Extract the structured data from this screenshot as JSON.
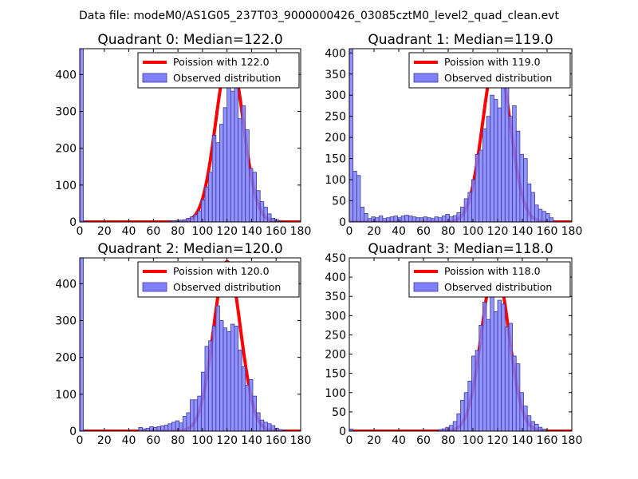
{
  "figure": {
    "suptitle": "Data file: modeM0/AS1G05_237T03_9000000426_03085cztM0_level2_quad_clean.evt"
  },
  "colors": {
    "hist_fill": "#8080ff",
    "hist_edge": "#3a3a9a",
    "poisson_line": "#ff0000"
  },
  "chart_data": [
    {
      "type": "bar",
      "title": "Quadrant 0: Median=122.0",
      "legend": {
        "placement": "top-right",
        "entries": [
          "Poission with 122.0",
          "Observed distribution"
        ]
      },
      "xlim": [
        0,
        180
      ],
      "ylim": [
        0,
        470
      ],
      "xticks": [
        "0",
        "20",
        "40",
        "60",
        "80",
        "100",
        "120",
        "140",
        "160",
        "180"
      ],
      "yticks": [
        0,
        100,
        200,
        300,
        400
      ],
      "bin_width": 3,
      "bins": {
        "x": [
          0,
          3,
          72,
          75,
          78,
          81,
          84,
          87,
          90,
          93,
          96,
          99,
          102,
          105,
          108,
          111,
          114,
          117,
          120,
          123,
          126,
          129,
          132,
          135,
          138,
          141,
          144,
          147,
          150,
          153,
          156,
          159,
          162,
          165
        ],
        "y": [
          470,
          2,
          2,
          3,
          4,
          5,
          6,
          10,
          14,
          20,
          30,
          60,
          95,
          135,
          235,
          215,
          265,
          310,
          380,
          355,
          390,
          280,
          315,
          250,
          145,
          135,
          85,
          55,
          40,
          22,
          10,
          6,
          2,
          1
        ]
      },
      "poisson": {
        "mean": 122.0,
        "peak": 455
      }
    },
    {
      "type": "bar",
      "title": "Quadrant 1: Median=119.0",
      "legend": {
        "placement": "top-right",
        "entries": [
          "Poission with 119.0",
          "Observed distribution"
        ]
      },
      "xlim": [
        0,
        180
      ],
      "ylim": [
        0,
        410
      ],
      "xticks": [
        "0",
        "20",
        "40",
        "60",
        "80",
        "100",
        "120",
        "140",
        "160",
        "180"
      ],
      "yticks": [
        0,
        50,
        100,
        150,
        200,
        250,
        300,
        350,
        400
      ],
      "bin_width": 3,
      "bins": {
        "x": [
          0,
          3,
          6,
          9,
          12,
          15,
          18,
          21,
          24,
          27,
          30,
          33,
          36,
          39,
          42,
          45,
          48,
          51,
          54,
          57,
          60,
          63,
          66,
          69,
          72,
          75,
          78,
          81,
          84,
          87,
          90,
          93,
          96,
          99,
          102,
          105,
          108,
          111,
          114,
          117,
          120,
          123,
          126,
          129,
          132,
          135,
          138,
          141,
          144,
          147,
          150,
          153,
          156,
          159,
          162
        ],
        "y": [
          410,
          120,
          110,
          35,
          20,
          8,
          12,
          10,
          14,
          8,
          10,
          12,
          14,
          10,
          14,
          16,
          14,
          12,
          10,
          10,
          12,
          10,
          8,
          12,
          10,
          14,
          18,
          12,
          15,
          22,
          35,
          55,
          70,
          100,
          160,
          170,
          220,
          250,
          300,
          290,
          270,
          330,
          340,
          250,
          275,
          215,
          160,
          150,
          90,
          70,
          40,
          30,
          25,
          20,
          10
        ]
      },
      "poisson": {
        "mean": 119.0,
        "peak": 395
      }
    },
    {
      "type": "bar",
      "title": "Quadrant 2: Median=120.0",
      "legend": {
        "placement": "top-right",
        "entries": [
          "Poission with 120.0",
          "Observed distribution"
        ]
      },
      "xlim": [
        0,
        180
      ],
      "ylim": [
        0,
        470
      ],
      "xticks": [
        "0",
        "20",
        "40",
        "60",
        "80",
        "100",
        "120",
        "140",
        "160",
        "180"
      ],
      "yticks": [
        0,
        100,
        200,
        300,
        400
      ],
      "bin_width": 3,
      "bins": {
        "x": [
          0,
          3,
          48,
          51,
          54,
          57,
          60,
          63,
          66,
          69,
          72,
          75,
          78,
          81,
          84,
          87,
          90,
          93,
          96,
          99,
          102,
          105,
          108,
          111,
          114,
          117,
          120,
          123,
          126,
          129,
          132,
          135,
          138,
          141,
          144,
          147,
          150,
          153,
          156,
          159,
          162,
          165
        ],
        "y": [
          470,
          2,
          10,
          6,
          8,
          12,
          10,
          12,
          14,
          16,
          20,
          24,
          28,
          22,
          40,
          50,
          85,
          85,
          95,
          160,
          230,
          245,
          285,
          340,
          300,
          280,
          270,
          290,
          285,
          220,
          175,
          125,
          140,
          95,
          50,
          30,
          24,
          20,
          15,
          8,
          4,
          2
        ]
      },
      "poisson": {
        "mean": 120.0,
        "peak": 460
      }
    },
    {
      "type": "bar",
      "title": "Quadrant 3: Median=118.0",
      "legend": {
        "placement": "top-right",
        "entries": [
          "Poission with 118.0",
          "Observed distribution"
        ]
      },
      "xlim": [
        0,
        180
      ],
      "ylim": [
        0,
        450
      ],
      "xticks": [
        "0",
        "20",
        "40",
        "60",
        "80",
        "100",
        "120",
        "140",
        "160",
        "180"
      ],
      "yticks": [
        0,
        50,
        100,
        150,
        200,
        250,
        300,
        350,
        400,
        450
      ],
      "bin_width": 3,
      "bins": {
        "x": [
          0,
          72,
          75,
          78,
          81,
          84,
          87,
          90,
          93,
          96,
          99,
          102,
          105,
          108,
          111,
          114,
          117,
          120,
          123,
          126,
          129,
          132,
          135,
          138,
          141,
          144,
          147,
          150,
          153,
          156
        ],
        "y": [
          5,
          4,
          6,
          10,
          15,
          25,
          45,
          80,
          100,
          130,
          195,
          210,
          275,
          335,
          290,
          350,
          310,
          340,
          330,
          270,
          280,
          195,
          175,
          100,
          65,
          40,
          25,
          18,
          10,
          5
        ]
      },
      "poisson": {
        "mean": 118.0,
        "peak": 430
      }
    }
  ]
}
